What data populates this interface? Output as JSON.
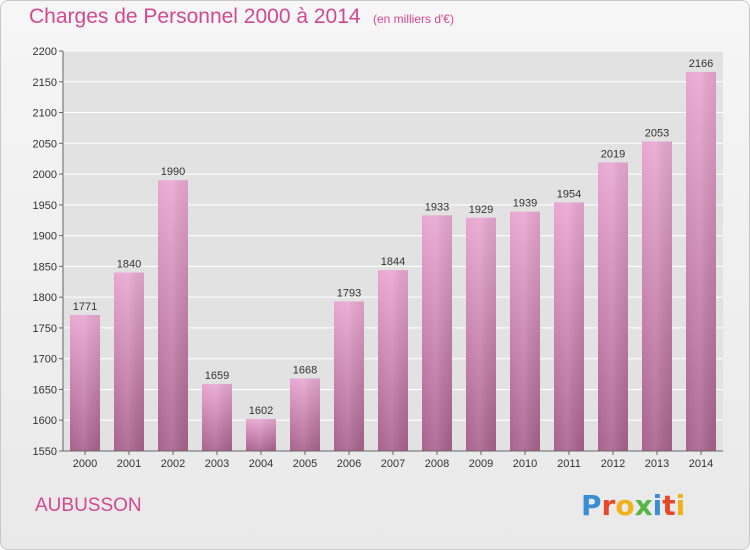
{
  "header": {
    "title": "Charges de Personnel 2000 à 2014",
    "subtitle": "(en milliers d'€)"
  },
  "footer": {
    "commune": "AUBUSSON",
    "logo_text": "Proxiti",
    "logo_colors": [
      "#3a8fd4",
      "#e7482b",
      "#f0b11b",
      "#5ab547",
      "#3a8fd4",
      "#e7482b",
      "#f0b11b"
    ]
  },
  "colors": {
    "accent": "#d24891",
    "bar_top": "#e9a8d2",
    "bar_bottom": "#a8628d",
    "grid": "#ffffff",
    "plot_background": "#e2e2e2"
  },
  "chart_data": {
    "type": "bar",
    "title": "Charges de Personnel 2000 à 2014",
    "subtitle": "(en milliers d'€)",
    "categories": [
      "2000",
      "2001",
      "2002",
      "2003",
      "2004",
      "2005",
      "2006",
      "2007",
      "2008",
      "2009",
      "2010",
      "2011",
      "2012",
      "2013",
      "2014"
    ],
    "values": [
      1771,
      1840,
      1990,
      1659,
      1602,
      1668,
      1793,
      1844,
      1933,
      1929,
      1939,
      1954,
      2019,
      2053,
      2166
    ],
    "xlabel": "",
    "ylabel": "",
    "ylim": [
      1550,
      2200
    ],
    "yticks": [
      1550,
      1600,
      1650,
      1700,
      1750,
      1800,
      1850,
      1900,
      1950,
      2000,
      2050,
      2100,
      2150,
      2200
    ],
    "grid": true,
    "data_labels": true
  }
}
